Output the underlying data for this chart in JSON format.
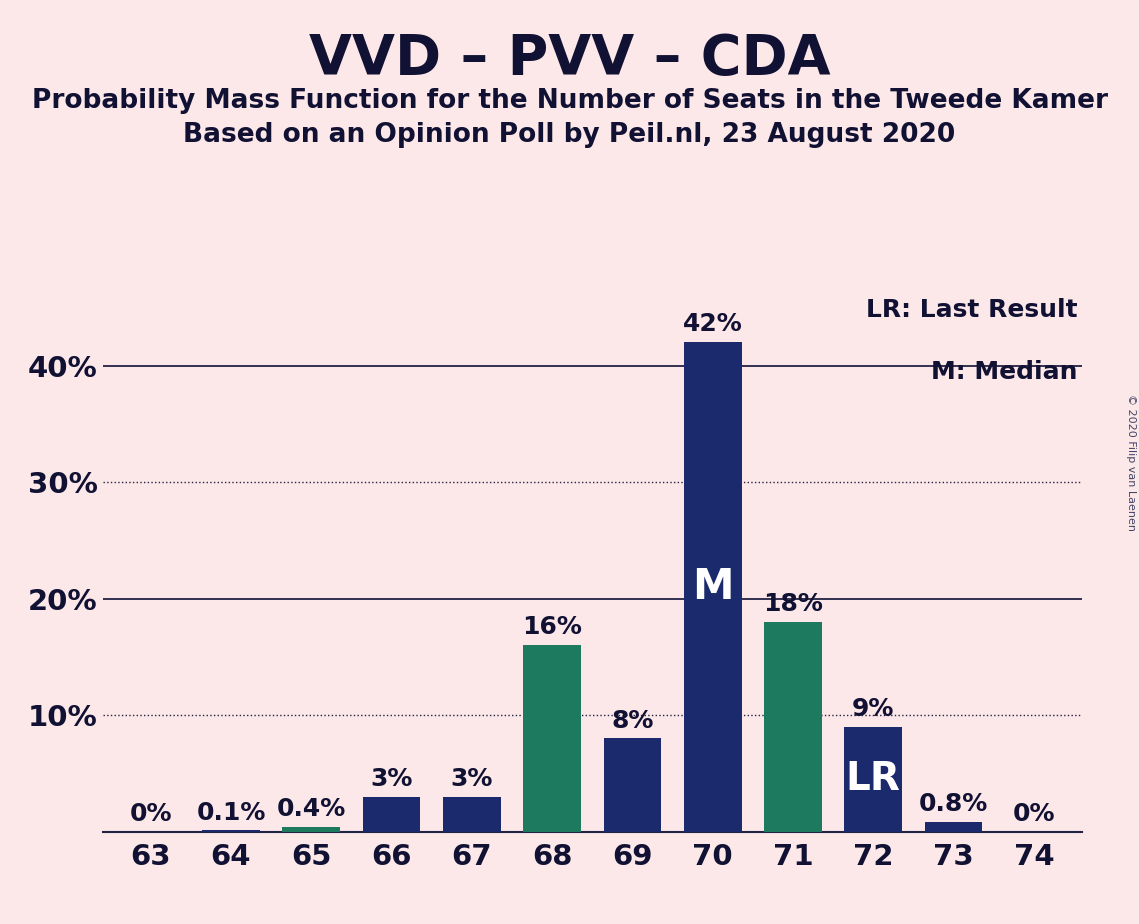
{
  "title": "VVD – PVV – CDA",
  "subtitle1": "Probability Mass Function for the Number of Seats in the Tweede Kamer",
  "subtitle2": "Based on an Opinion Poll by Peil.nl, 23 August 2020",
  "copyright": "© 2020 Filip van Laenen",
  "categories": [
    63,
    64,
    65,
    66,
    67,
    68,
    69,
    70,
    71,
    72,
    73,
    74
  ],
  "values": [
    0.0,
    0.1,
    0.4,
    3.0,
    3.0,
    16.0,
    8.0,
    42.0,
    18.0,
    9.0,
    0.8,
    0.0
  ],
  "bar_colors": [
    "#1a2a6c",
    "#1a2a6c",
    "#1d7a5f",
    "#1a2a6c",
    "#1a2a6c",
    "#1d7a5f",
    "#1a2a6c",
    "#1a2a6c",
    "#1d7a5f",
    "#1a2a6c",
    "#1a2a6c",
    "#1a2a6c"
  ],
  "labels": [
    "0%",
    "0.1%",
    "0.4%",
    "3%",
    "3%",
    "16%",
    "8%",
    "42%",
    "18%",
    "9%",
    "0.8%",
    "0%"
  ],
  "median_seat": 70,
  "lr_seat": 72,
  "background_color": "#fce8e8",
  "bar_navy": "#1a2a6c",
  "bar_teal": "#1d7a5f",
  "ylim": [
    0,
    46
  ],
  "yticks": [
    0,
    10,
    20,
    30,
    40
  ],
  "ytick_labels": [
    "",
    "10%",
    "20%",
    "30%",
    "40%"
  ],
  "solid_gridlines": [
    20,
    40
  ],
  "dotted_gridlines": [
    10,
    30
  ],
  "title_fontsize": 40,
  "subtitle_fontsize": 19,
  "label_fontsize": 18,
  "tick_fontsize": 21,
  "legend_fontsize": 18,
  "annotation_fontsize": 30
}
